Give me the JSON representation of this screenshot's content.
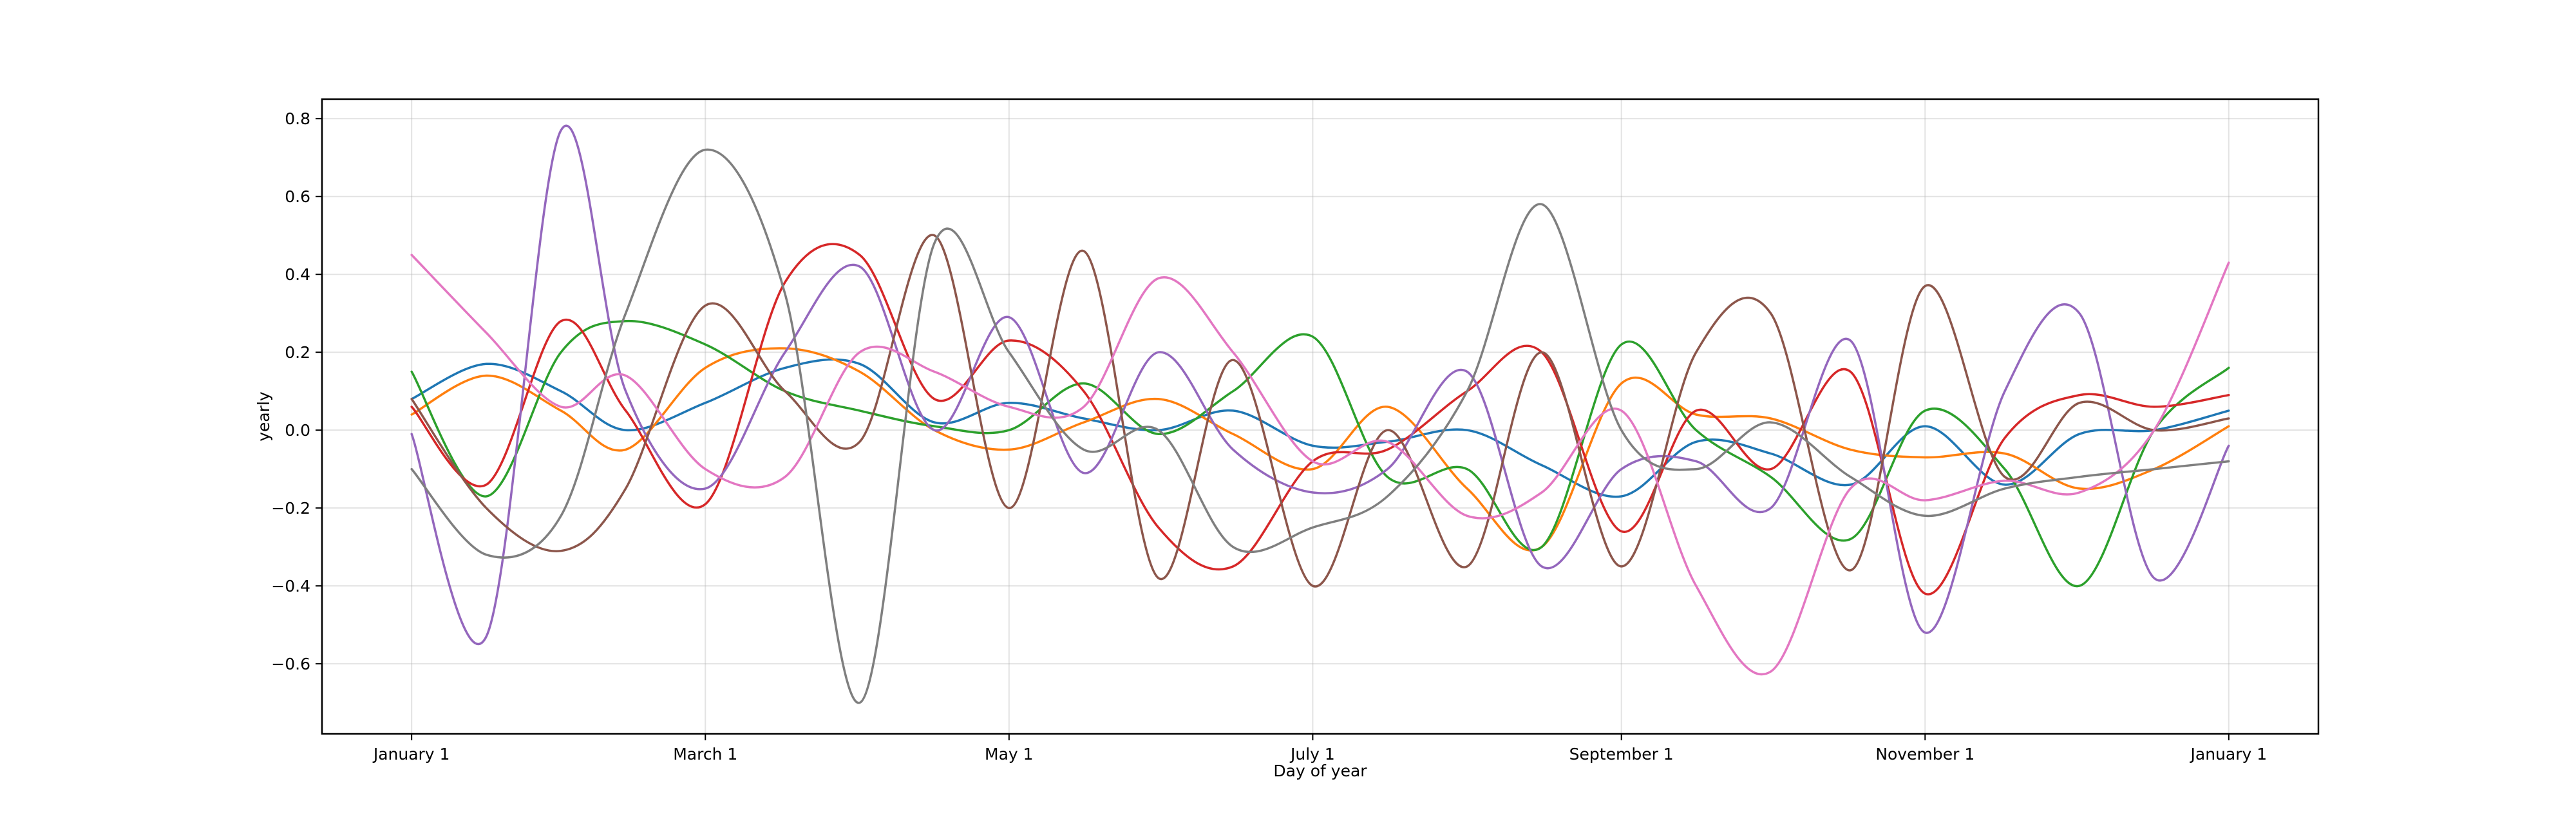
{
  "chart_data": {
    "type": "line",
    "title": "",
    "xlabel": "Day of year",
    "ylabel": "yearly",
    "x_ticks": [
      "January 1",
      "March 1",
      "May 1",
      "July 1",
      "September 1",
      "November 1",
      "January 1"
    ],
    "x_tick_days": [
      0,
      59,
      120,
      181,
      243,
      304,
      365
    ],
    "xlim": [
      -18,
      383
    ],
    "ylim": [
      -0.78,
      0.85
    ],
    "y_ticks": [
      -0.6,
      -0.4,
      -0.2,
      0.0,
      0.2,
      0.4,
      0.6,
      0.8
    ],
    "y_tick_labels": [
      "−0.6",
      "−0.4",
      "−0.2",
      "0.0",
      "0.2",
      "0.4",
      "0.6",
      "0.8"
    ],
    "grid": true,
    "legend": "none",
    "x": [
      0,
      15,
      30,
      43,
      59,
      75,
      90,
      105,
      120,
      135,
      150,
      165,
      181,
      196,
      212,
      227,
      243,
      258,
      273,
      289,
      304,
      320,
      335,
      350,
      365
    ],
    "series": [
      {
        "color": "#1f77b4",
        "values": [
          0.08,
          0.17,
          0.1,
          0.0,
          0.07,
          0.16,
          0.17,
          0.02,
          0.07,
          0.03,
          0.0,
          0.05,
          -0.04,
          -0.03,
          0.0,
          -0.09,
          -0.17,
          -0.03,
          -0.06,
          -0.14,
          0.01,
          -0.14,
          -0.01,
          0.0,
          0.05
        ]
      },
      {
        "color": "#ff7f0e",
        "values": [
          0.04,
          0.14,
          0.05,
          -0.05,
          0.16,
          0.21,
          0.15,
          0.0,
          -0.05,
          0.02,
          0.08,
          -0.01,
          -0.1,
          0.06,
          -0.15,
          -0.3,
          0.12,
          0.04,
          0.03,
          -0.05,
          -0.07,
          -0.06,
          -0.15,
          -0.1,
          0.01
        ]
      },
      {
        "color": "#2ca02c",
        "values": [
          0.15,
          -0.17,
          0.2,
          0.28,
          0.22,
          0.1,
          0.05,
          0.01,
          0.0,
          0.12,
          -0.01,
          0.1,
          0.24,
          -0.12,
          -0.1,
          -0.3,
          0.22,
          0.0,
          -0.12,
          -0.28,
          0.05,
          -0.1,
          -0.4,
          0.0,
          0.16
        ]
      },
      {
        "color": "#d62728",
        "values": [
          0.06,
          -0.14,
          0.28,
          0.05,
          -0.19,
          0.38,
          0.45,
          0.08,
          0.23,
          0.1,
          -0.25,
          -0.35,
          -0.08,
          -0.05,
          0.1,
          0.2,
          -0.26,
          0.05,
          -0.1,
          0.15,
          -0.42,
          -0.02,
          0.09,
          0.06,
          0.09
        ]
      },
      {
        "color": "#9467bd",
        "values": [
          -0.01,
          -0.53,
          0.77,
          0.1,
          -0.15,
          0.2,
          0.42,
          0.0,
          0.29,
          -0.11,
          0.2,
          -0.05,
          -0.16,
          -0.1,
          0.15,
          -0.35,
          -0.1,
          -0.08,
          -0.2,
          0.23,
          -0.52,
          0.1,
          0.3,
          -0.38,
          -0.04
        ]
      },
      {
        "color": "#8c564b",
        "values": [
          0.08,
          -0.2,
          -0.31,
          -0.15,
          0.32,
          0.1,
          -0.03,
          0.5,
          -0.2,
          0.46,
          -0.38,
          0.18,
          -0.4,
          0.0,
          -0.35,
          0.2,
          -0.35,
          0.2,
          0.3,
          -0.36,
          0.37,
          -0.12,
          0.07,
          0.0,
          0.03
        ]
      },
      {
        "color": "#e377c2",
        "values": [
          0.45,
          0.25,
          0.06,
          0.14,
          -0.1,
          -0.12,
          0.2,
          0.15,
          0.06,
          0.06,
          0.39,
          0.2,
          -0.08,
          -0.03,
          -0.22,
          -0.16,
          0.05,
          -0.4,
          -0.62,
          -0.15,
          -0.18,
          -0.13,
          -0.16,
          0.0,
          0.43
        ]
      },
      {
        "color": "#7f7f7f",
        "values": [
          -0.1,
          -0.32,
          -0.22,
          0.3,
          0.72,
          0.35,
          -0.7,
          0.48,
          0.2,
          -0.05,
          0.0,
          -0.3,
          -0.25,
          -0.17,
          0.1,
          0.58,
          0.0,
          -0.1,
          0.02,
          -0.12,
          -0.22,
          -0.15,
          -0.12,
          -0.1,
          -0.08
        ]
      }
    ]
  }
}
